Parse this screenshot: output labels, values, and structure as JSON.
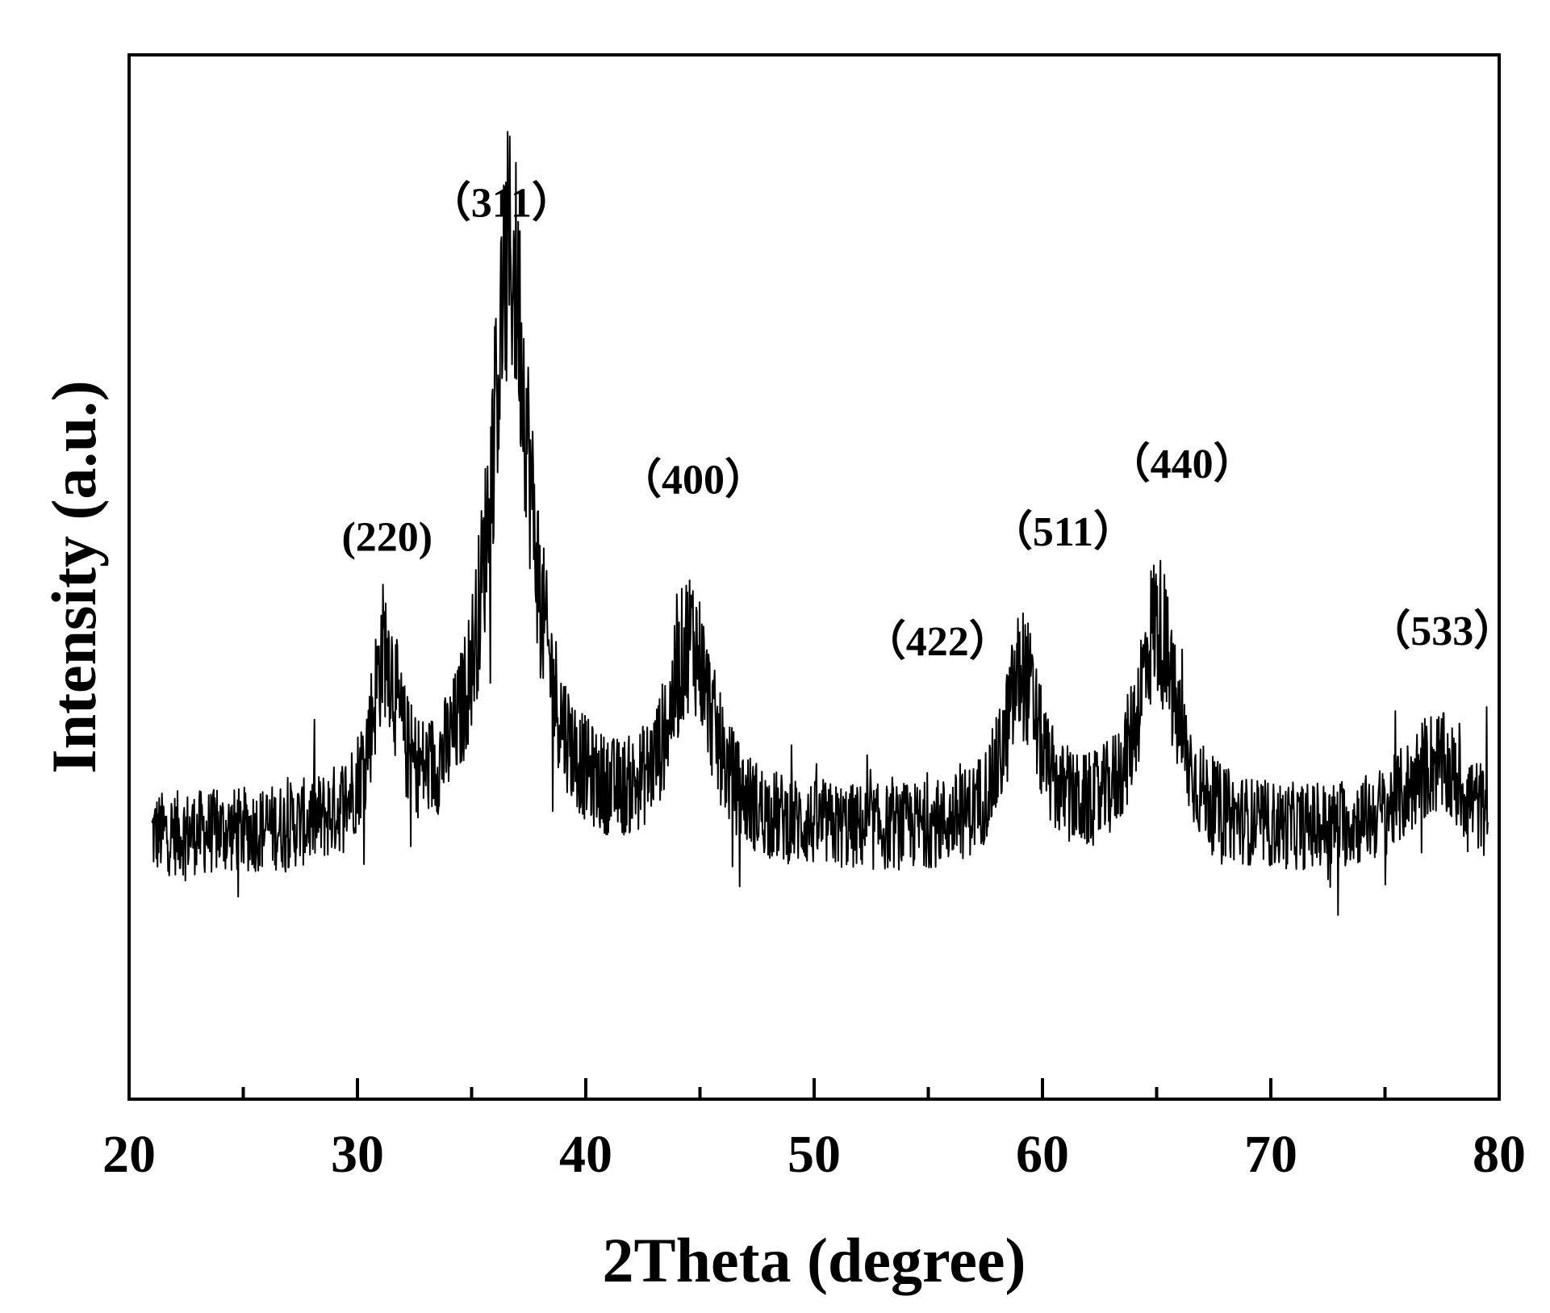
{
  "chart_data": {
    "type": "line",
    "title": "",
    "xlabel": "2Theta (degree)",
    "ylabel": "Intensity (a.u.)",
    "xlim": [
      20,
      80
    ],
    "ylim": [
      0,
      100
    ],
    "x_ticks": [
      20,
      30,
      40,
      50,
      60,
      70,
      80
    ],
    "x_tick_labels": [
      "20",
      "30",
      "40",
      "50",
      "60",
      "70",
      "80"
    ],
    "y_ticks_shown": false,
    "grid": false,
    "line_color": "#000000",
    "background": "#ffffff",
    "x_range": [
      21,
      79.5
    ],
    "baseline": 25,
    "noise_amplitude": 4,
    "peaks": [
      {
        "x": 31.2,
        "height": 16,
        "width": 0.7
      },
      {
        "x": 36.7,
        "height": 55,
        "width": 1.1
      },
      {
        "x": 44.6,
        "height": 18,
        "width": 1.1
      },
      {
        "x": 59.1,
        "height": 15,
        "width": 0.9
      },
      {
        "x": 65.0,
        "height": 20,
        "width": 1.0
      },
      {
        "x": 77.2,
        "height": 7,
        "width": 1.6
      }
    ],
    "annotations": [
      {
        "text": "(220)",
        "x": 31.3,
        "y": 52.5
      },
      {
        "text": "（311）",
        "x": 36.3,
        "y": 84.5
      },
      {
        "text": "（400）",
        "x": 44.7,
        "y": 58
      },
      {
        "text": "（422）",
        "x": 55.4,
        "y": 42.5
      },
      {
        "text": "（511）",
        "x": 60.9,
        "y": 53
      },
      {
        "text": "（440）",
        "x": 66.1,
        "y": 59.5
      },
      {
        "text": "（533）",
        "x": 77.5,
        "y": 43.5
      }
    ]
  }
}
